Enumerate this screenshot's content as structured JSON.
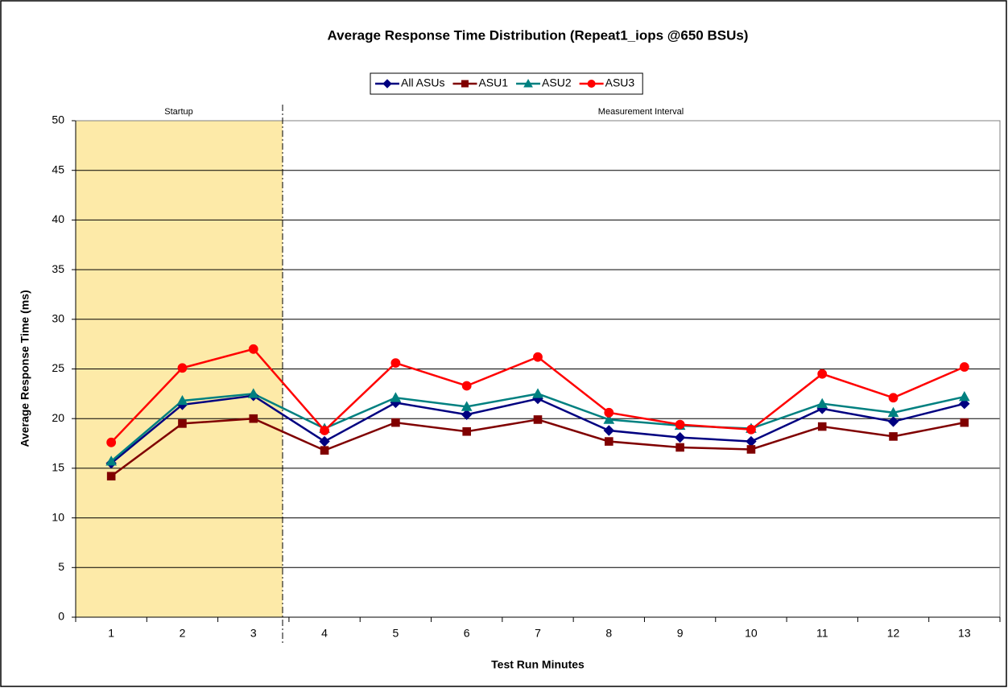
{
  "chart_data": {
    "type": "line",
    "title": "Average Response Time Distribution (Repeat1_iops @650 BSUs)",
    "x_label": "Test Run Minutes",
    "y_label": "Average Response Time (ms)",
    "annotations": [
      "Startup",
      "Measurement Interval"
    ],
    "categories": [
      1,
      2,
      3,
      4,
      5,
      6,
      7,
      8,
      9,
      10,
      11,
      12,
      13
    ],
    "series": [
      {
        "name": "All ASUs",
        "color": "#000080",
        "marker": "diamond",
        "values": [
          15.5,
          21.4,
          22.3,
          17.7,
          21.6,
          20.4,
          22.0,
          18.8,
          18.1,
          17.7,
          21.0,
          19.7,
          21.5
        ]
      },
      {
        "name": "ASU1",
        "color": "#800000",
        "marker": "square",
        "values": [
          14.2,
          19.5,
          20.0,
          16.8,
          19.6,
          18.7,
          19.9,
          17.7,
          17.1,
          16.9,
          19.2,
          18.2,
          19.6
        ]
      },
      {
        "name": "ASU2",
        "color": "#008080",
        "marker": "triangle",
        "values": [
          15.7,
          21.8,
          22.5,
          19.0,
          22.1,
          21.2,
          22.5,
          19.9,
          19.3,
          19.0,
          21.5,
          20.6,
          22.2
        ]
      },
      {
        "name": "ASU3",
        "color": "#ff0000",
        "marker": "circle",
        "values": [
          17.6,
          25.1,
          27.0,
          18.8,
          25.6,
          23.3,
          26.2,
          20.6,
          19.4,
          18.9,
          24.5,
          22.1,
          25.2
        ]
      }
    ],
    "ylim": [
      0,
      50
    ],
    "yticks": [
      0,
      5,
      10,
      15,
      20,
      25,
      30,
      35,
      40,
      45,
      50
    ],
    "grid": true,
    "legend": "top"
  }
}
